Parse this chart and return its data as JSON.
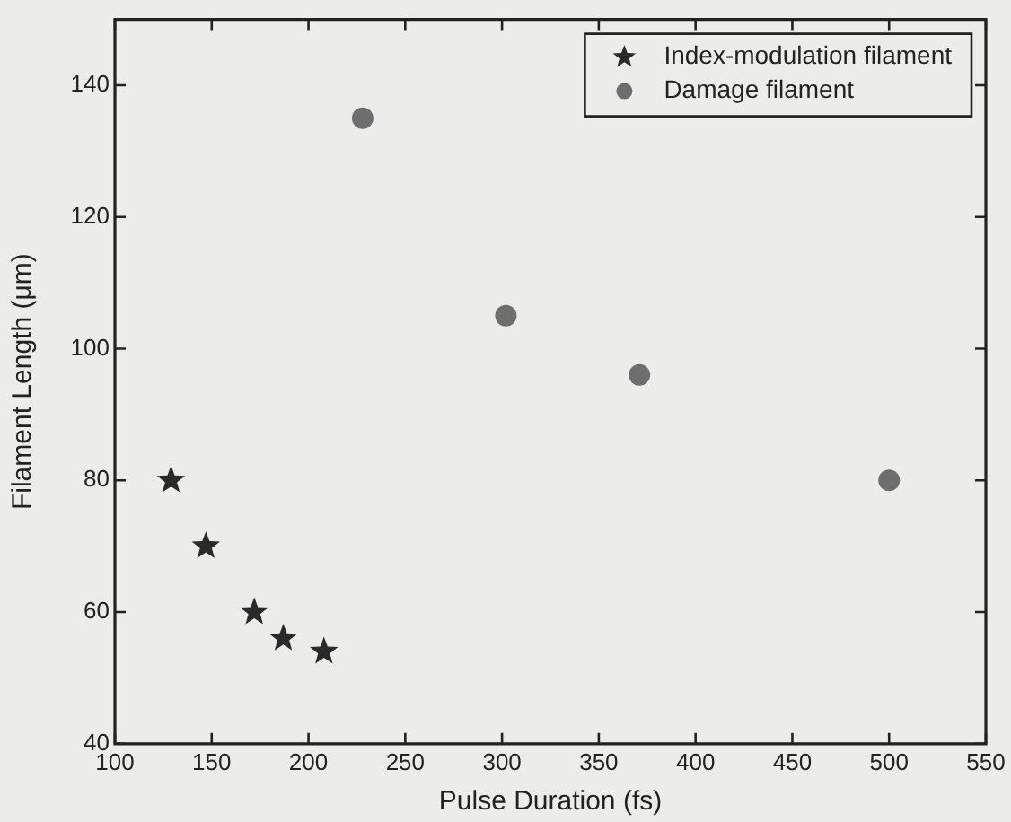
{
  "chart_data": {
    "type": "scatter",
    "xlabel": "Pulse Duration (fs)",
    "ylabel": "Filament Length (μm)",
    "xlim": [
      100,
      550
    ],
    "xticks": [
      100,
      150,
      200,
      250,
      300,
      350,
      400,
      450,
      500,
      550
    ],
    "ylim": [
      40,
      150
    ],
    "yticks": [
      40,
      60,
      80,
      100,
      120,
      140
    ],
    "legend": "top right",
    "series": [
      {
        "name": "Index-modulation filament",
        "color": "#2a2a2a",
        "marker": "star",
        "x": [
          129,
          147,
          172,
          187,
          208
        ],
        "values": [
          80,
          70,
          60,
          56,
          54
        ]
      },
      {
        "name": "Damage filament",
        "color": "#6e6e6e",
        "marker": "circle",
        "x": [
          228,
          302,
          371,
          500
        ],
        "values": [
          135,
          105,
          96,
          80
        ]
      }
    ]
  }
}
